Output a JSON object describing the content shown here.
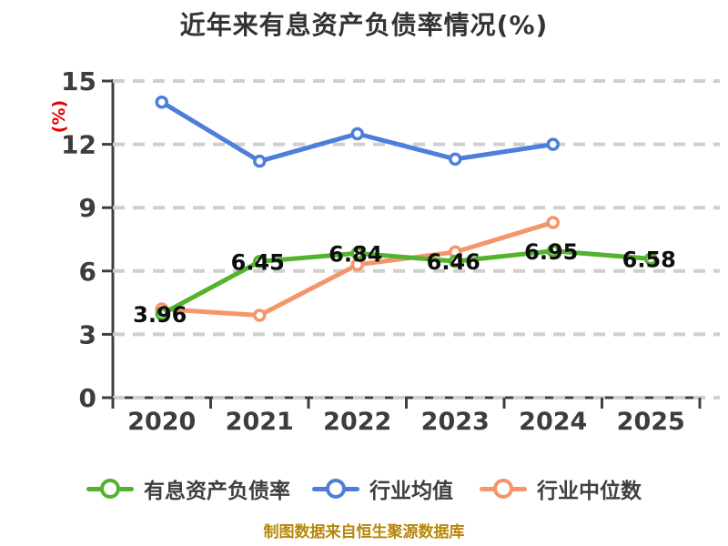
{
  "title": "近年来有息资产负债率情况(%)",
  "y_axis_label": "(%)",
  "footer": "制图数据来自恒生聚源数据库",
  "colors": {
    "title_text": "#333333",
    "axis": "#3f3f3f",
    "tick_text": "#3d3d3d",
    "gridline": "#cfcfcf",
    "y_axis_label_red": "#e60000",
    "data_label_text": "#0d0d0d",
    "footer_gold": "#b8860b",
    "series_green": "#54b32e",
    "series_blue": "#4d7edb",
    "series_orange": "#f4956a"
  },
  "chart_data": {
    "type": "line",
    "title": "近年来有息资产负债率情况(%)",
    "xlabel": "",
    "ylabel": "(%)",
    "categories": [
      "2020",
      "2021",
      "2022",
      "2023",
      "2024",
      "2025"
    ],
    "ylim": [
      0,
      15
    ],
    "yticks": [
      0,
      3,
      6,
      9,
      12,
      15
    ],
    "grid": "dashed-horizontal",
    "legend_position": "bottom",
    "marker_style": "circle-white-fill",
    "series": [
      {
        "key": "company-ratio",
        "name": "有息资产负债率",
        "color": "#54b32e",
        "values": [
          3.96,
          6.45,
          6.84,
          6.46,
          6.95,
          6.58
        ],
        "data_labels": [
          "3.96",
          "6.45",
          "6.84",
          "6.46",
          "6.95",
          "6.58"
        ]
      },
      {
        "key": "industry-mean",
        "name": "行业均值",
        "color": "#4d7edb",
        "values": [
          14.0,
          11.2,
          12.5,
          11.3,
          12.0,
          null
        ],
        "data_labels": null
      },
      {
        "key": "industry-median",
        "name": "行业中位数",
        "color": "#f4956a",
        "values": [
          4.2,
          3.9,
          6.3,
          6.9,
          8.3,
          null
        ],
        "data_labels": null
      }
    ]
  }
}
